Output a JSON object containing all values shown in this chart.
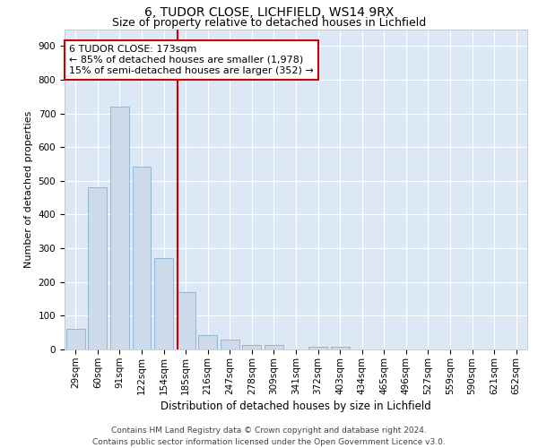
{
  "title": "6, TUDOR CLOSE, LICHFIELD, WS14 9RX",
  "subtitle": "Size of property relative to detached houses in Lichfield",
  "xlabel": "Distribution of detached houses by size in Lichfield",
  "ylabel": "Number of detached properties",
  "categories": [
    "29sqm",
    "60sqm",
    "91sqm",
    "122sqm",
    "154sqm",
    "185sqm",
    "216sqm",
    "247sqm",
    "278sqm",
    "309sqm",
    "341sqm",
    "372sqm",
    "403sqm",
    "434sqm",
    "465sqm",
    "496sqm",
    "527sqm",
    "559sqm",
    "590sqm",
    "621sqm",
    "652sqm"
  ],
  "values": [
    62,
    482,
    720,
    543,
    270,
    170,
    42,
    30,
    14,
    12,
    0,
    8,
    8,
    0,
    0,
    0,
    0,
    0,
    0,
    0,
    0
  ],
  "bar_color": "#ccdaea",
  "bar_edge_color": "#8ab0cc",
  "vline_color": "#cc0000",
  "annotation_text": "6 TUDOR CLOSE: 173sqm\n← 85% of detached houses are smaller (1,978)\n15% of semi-detached houses are larger (352) →",
  "annotation_box_color": "#ffffff",
  "annotation_box_edge_color": "#cc0000",
  "ylim": [
    0,
    950
  ],
  "yticks": [
    0,
    100,
    200,
    300,
    400,
    500,
    600,
    700,
    800,
    900
  ],
  "plot_bg_color": "#dce8f5",
  "footer": "Contains HM Land Registry data © Crown copyright and database right 2024.\nContains public sector information licensed under the Open Government Licence v3.0.",
  "title_fontsize": 10,
  "subtitle_fontsize": 9,
  "xlabel_fontsize": 8.5,
  "ylabel_fontsize": 8,
  "tick_fontsize": 7.5,
  "annotation_fontsize": 8,
  "footer_fontsize": 6.5
}
